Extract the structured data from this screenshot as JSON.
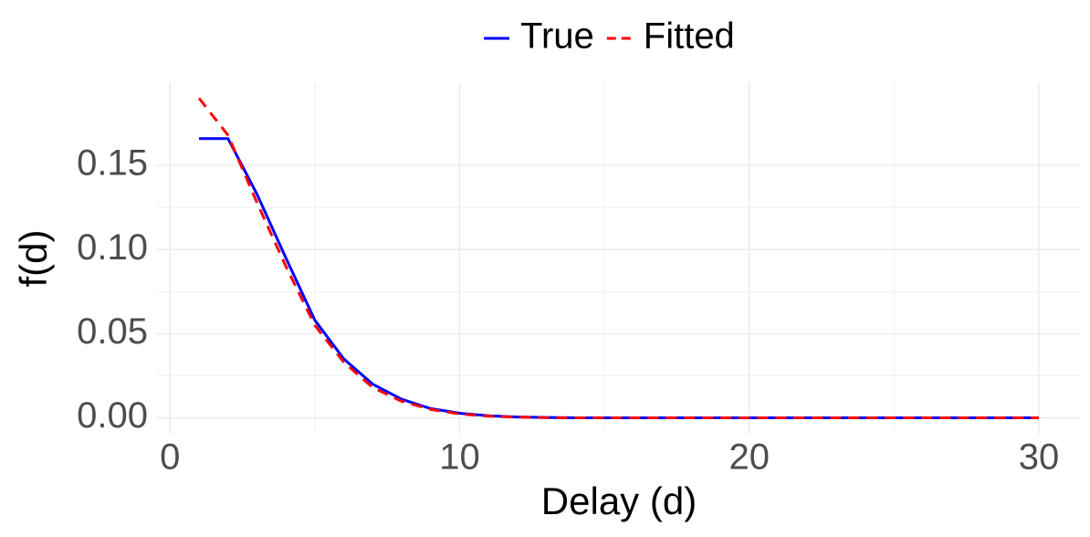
{
  "chart_data": {
    "type": "line",
    "x_label": "Delay (d)",
    "y_label": "f(d)",
    "x": [
      1,
      2,
      3,
      4,
      5,
      6,
      7,
      8,
      9,
      10,
      11,
      12,
      13,
      14,
      15,
      16,
      17,
      18,
      19,
      20,
      21,
      22,
      23,
      24,
      25,
      26,
      27,
      28,
      29,
      30
    ],
    "series": [
      {
        "name": "True",
        "color": "#0000ff",
        "dash": "solid",
        "values": [
          0.166,
          0.166,
          0.133,
          0.095,
          0.058,
          0.035,
          0.02,
          0.011,
          0.0055,
          0.0027,
          0.0012,
          0.0005,
          0.0002,
          0,
          0,
          0,
          0,
          0,
          0,
          0,
          0,
          0,
          0,
          0,
          0,
          0,
          0,
          0,
          0,
          0
        ]
      },
      {
        "name": "Fitted",
        "color": "#ff0000",
        "dash": "dashed",
        "values": [
          0.19,
          0.168,
          0.128,
          0.09,
          0.055,
          0.033,
          0.018,
          0.0098,
          0.005,
          0.0023,
          0.001,
          0.0004,
          0.0001,
          0,
          0,
          0,
          0,
          0,
          0,
          0,
          0,
          0,
          0,
          0,
          0,
          0,
          0,
          0,
          0,
          0
        ]
      }
    ],
    "xlim": [
      -0.45,
      31.45
    ],
    "ylim": [
      -0.0095,
      0.1995
    ],
    "xticks": [
      0,
      10,
      20,
      30
    ],
    "yticks": [
      {
        "value": 0,
        "label": "0.00"
      },
      {
        "value": 0.05,
        "label": "0.05"
      },
      {
        "value": 0.1,
        "label": "0.10"
      },
      {
        "value": 0.15,
        "label": "0.15"
      }
    ],
    "grid": true,
    "legend_position": "top"
  }
}
